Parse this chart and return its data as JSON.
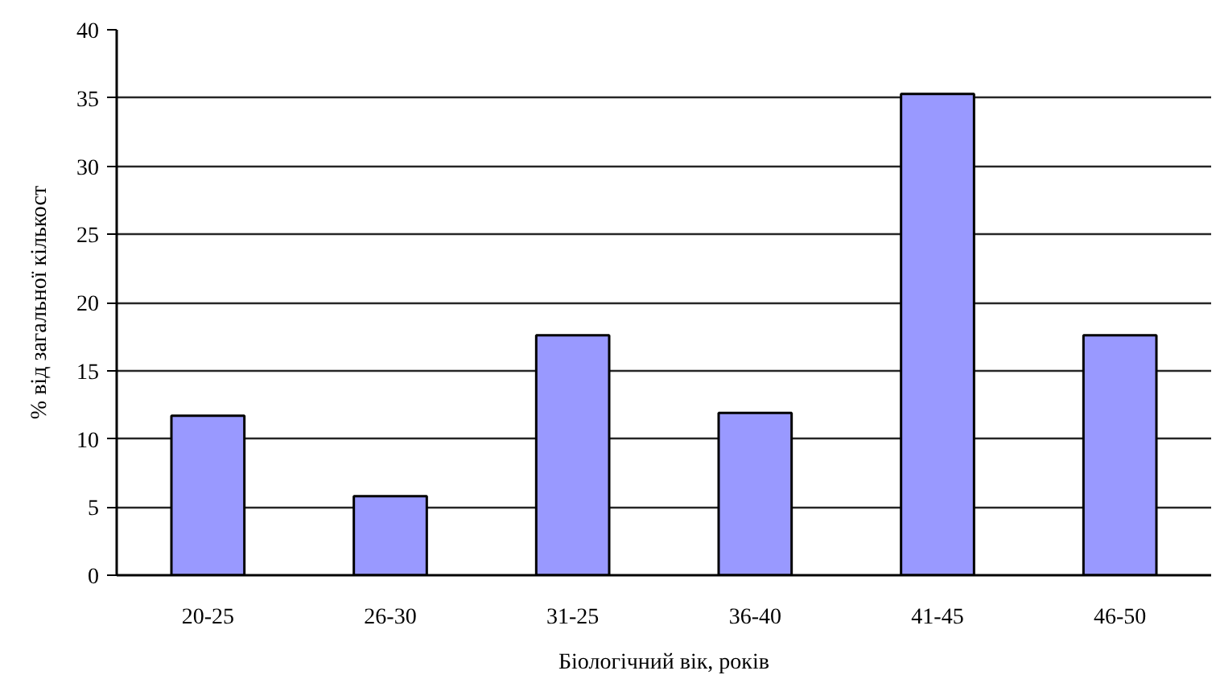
{
  "chart_data": {
    "type": "bar",
    "xlabel": "Біологічний вік, років",
    "ylabel": "% від загальної кількост",
    "categories": [
      "20-25",
      "26-30",
      "31-25",
      "36-40",
      "41-45",
      "46-50"
    ],
    "values": [
      11.7,
      5.8,
      17.6,
      11.9,
      35.3,
      17.6
    ],
    "color": "#9999ff",
    "ylim": [
      0,
      40
    ],
    "yticks": [
      0,
      5,
      10,
      15,
      20,
      25,
      30,
      35,
      40
    ],
    "grid": "y"
  }
}
